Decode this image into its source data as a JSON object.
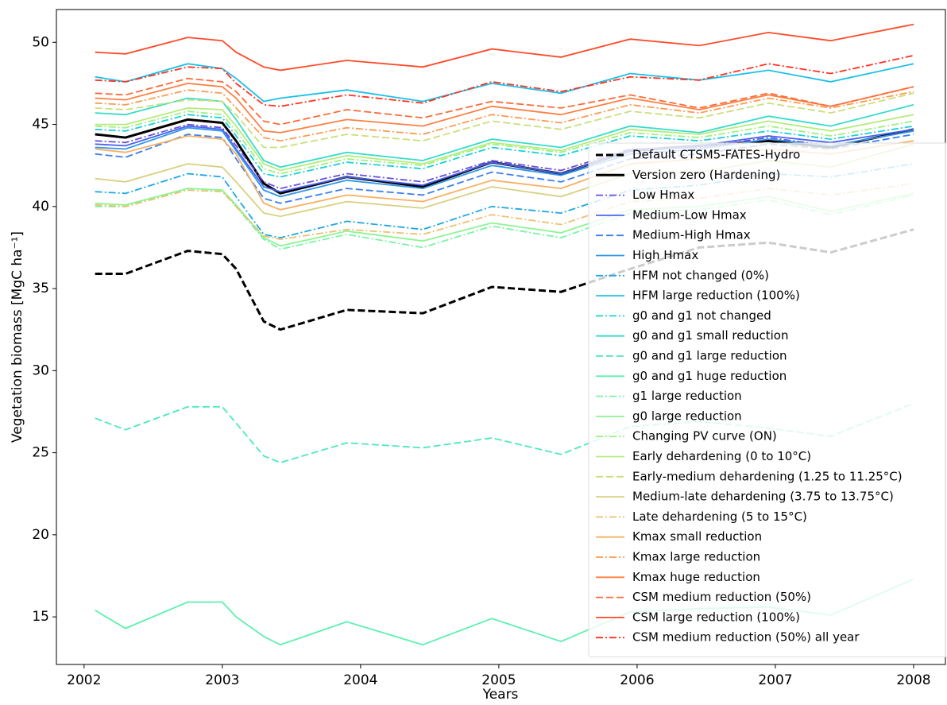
{
  "chart_data": {
    "type": "line",
    "xlabel": "Years",
    "ylabel": "Vegetation biomass [MgC ha⁻¹]",
    "xlim": [
      2001.8,
      2008.23
    ],
    "ylim": [
      12.1,
      52
    ],
    "xticks": [
      2002,
      2003,
      2004,
      2005,
      2006,
      2007,
      2008
    ],
    "yticks": [
      15,
      20,
      25,
      30,
      35,
      40,
      45,
      50
    ],
    "legend": "right",
    "x": [
      2002.08,
      2002.3,
      2002.75,
      2003.0,
      2003.1,
      2003.3,
      2003.42,
      2003.9,
      2004.45,
      2004.95,
      2005.45,
      2005.95,
      2006.45,
      2006.95,
      2007.4,
      2008.0
    ],
    "series": [
      {
        "name": "Default CTSM5-FATES-Hydro",
        "color": "#000000",
        "style": "dashed",
        "values": [
          35.9,
          35.9,
          37.3,
          37.1,
          36.2,
          33.0,
          32.5,
          33.7,
          33.5,
          35.1,
          34.8,
          36.2,
          37.5,
          37.8,
          37.2,
          38.6
        ]
      },
      {
        "name": "Version zero (Hardening)",
        "color": "#000000",
        "style": "solid",
        "values": [
          44.4,
          44.2,
          45.3,
          45.1,
          44.0,
          41.4,
          40.8,
          41.8,
          41.2,
          42.7,
          42.0,
          43.4,
          43.7,
          44.0,
          43.6,
          44.7
        ]
      },
      {
        "name": "Low Hmax",
        "color": "#6a4fe0",
        "style": "dashdot",
        "values": [
          44.0,
          43.9,
          45.0,
          44.8,
          43.7,
          41.5,
          41.1,
          42.0,
          41.5,
          42.8,
          42.2,
          43.5,
          43.6,
          44.2,
          43.7,
          44.6
        ]
      },
      {
        "name": "Medium-Low Hmax",
        "color": "#4a62ec",
        "style": "solid",
        "values": [
          43.8,
          43.7,
          44.9,
          44.7,
          43.5,
          41.2,
          40.9,
          41.8,
          41.3,
          42.7,
          42.0,
          43.4,
          43.7,
          44.3,
          43.9,
          44.7
        ]
      },
      {
        "name": "Medium-High Hmax",
        "color": "#3a7ef0",
        "style": "dashed",
        "values": [
          43.2,
          43.0,
          44.4,
          44.2,
          42.9,
          40.5,
          40.2,
          41.1,
          40.7,
          42.1,
          41.5,
          42.9,
          43.2,
          43.8,
          43.5,
          44.4
        ]
      },
      {
        "name": "High Hmax",
        "color": "#2f96e8",
        "style": "solid",
        "values": [
          43.6,
          43.5,
          44.8,
          44.6,
          43.4,
          41.0,
          40.6,
          41.6,
          41.1,
          42.5,
          41.9,
          43.2,
          43.5,
          44.1,
          43.7,
          44.6
        ]
      },
      {
        "name": "HFM not changed (0%)",
        "color": "#1ea8e0",
        "style": "dashdot",
        "values": [
          40.9,
          40.8,
          42.0,
          41.8,
          40.6,
          38.3,
          38.1,
          39.1,
          38.6,
          40.0,
          39.6,
          41.0,
          41.3,
          42.0,
          41.8,
          42.6
        ]
      },
      {
        "name": "HFM large reduction (100%)",
        "color": "#1cc0e6",
        "style": "solid",
        "values": [
          47.9,
          47.6,
          48.7,
          48.4,
          47.8,
          46.4,
          46.6,
          47.1,
          46.4,
          47.5,
          46.9,
          48.1,
          47.7,
          48.3,
          47.6,
          48.7
        ]
      },
      {
        "name": "g0 and g1 not changed",
        "color": "#1ad0d8",
        "style": "dashdot",
        "values": [
          44.7,
          44.6,
          45.6,
          45.4,
          44.3,
          42.0,
          41.8,
          42.7,
          42.3,
          43.6,
          43.1,
          44.3,
          44.0,
          44.6,
          44.1,
          44.9
        ]
      },
      {
        "name": "g0 and g1 small reduction",
        "color": "#35dccb",
        "style": "solid",
        "values": [
          45.7,
          45.6,
          46.6,
          46.4,
          45.3,
          42.8,
          42.4,
          43.3,
          42.8,
          44.1,
          43.6,
          44.9,
          44.5,
          45.5,
          44.9,
          46.2
        ]
      },
      {
        "name": "g0 and g1 large reduction",
        "color": "#4ee8c0",
        "style": "dashed",
        "values": [
          27.1,
          26.4,
          27.8,
          27.8,
          26.8,
          24.8,
          24.4,
          25.6,
          25.3,
          25.9,
          24.9,
          26.6,
          26.9,
          26.5,
          26.0,
          28.0
        ]
      },
      {
        "name": "g0 and g1 huge reduction",
        "color": "#5cf0b0",
        "style": "solid",
        "values": [
          15.4,
          14.3,
          15.9,
          15.9,
          15.0,
          13.8,
          13.3,
          14.7,
          13.3,
          14.9,
          13.5,
          15.3,
          15.5,
          15.6,
          15.1,
          17.3
        ]
      },
      {
        "name": "g1 large reduction",
        "color": "#7af4a6",
        "style": "dashdot",
        "values": [
          40.0,
          40.0,
          41.1,
          41.0,
          40.0,
          38.0,
          37.4,
          38.3,
          37.5,
          38.8,
          38.1,
          39.6,
          39.8,
          40.4,
          39.5,
          40.7
        ]
      },
      {
        "name": "g0 large reduction",
        "color": "#8cf590",
        "style": "solid",
        "values": [
          40.2,
          40.1,
          41.1,
          41.0,
          40.1,
          38.1,
          37.6,
          38.5,
          37.9,
          39.0,
          38.4,
          39.8,
          40.0,
          40.6,
          39.7,
          40.8
        ]
      },
      {
        "name": "Changing PV curve (ON)",
        "color": "#a0f080",
        "style": "dashdot",
        "values": [
          44.9,
          44.8,
          45.8,
          45.6,
          44.6,
          42.3,
          42.0,
          42.9,
          42.5,
          43.8,
          43.3,
          44.5,
          44.2,
          44.9,
          44.3,
          45.2
        ]
      },
      {
        "name": "Early dehardening (0 to 10°C)",
        "color": "#b4ec7c",
        "style": "solid",
        "values": [
          45.0,
          45.0,
          46.0,
          45.9,
          44.9,
          42.6,
          42.2,
          43.1,
          42.6,
          43.9,
          43.4,
          44.7,
          44.4,
          45.2,
          44.6,
          45.6
        ]
      },
      {
        "name": "Early-medium dehardening (1.25 to 11.25°C)",
        "color": "#c8e07a",
        "style": "dashed",
        "values": [
          46.0,
          45.9,
          46.5,
          46.4,
          45.6,
          43.6,
          43.6,
          44.4,
          44.0,
          45.2,
          44.7,
          45.8,
          45.4,
          46.3,
          45.7,
          46.9
        ]
      },
      {
        "name": "Medium-late dehardening (3.75 to 13.75°C)",
        "color": "#d8d080",
        "style": "solid",
        "values": [
          41.7,
          41.5,
          42.6,
          42.4,
          41.5,
          39.6,
          39.4,
          40.3,
          39.9,
          41.2,
          40.6,
          42.0,
          42.1,
          42.8,
          42.4,
          43.8
        ]
      },
      {
        "name": "Late dehardening (5 to 15°C)",
        "color": "#ecc070",
        "style": "dashdot",
        "values": [
          40.1,
          40.0,
          41.0,
          40.9,
          40.0,
          38.2,
          38.0,
          38.6,
          38.3,
          39.5,
          38.9,
          40.3,
          40.5,
          41.1,
          40.7,
          41.4
        ]
      },
      {
        "name": "Kmax small reduction",
        "color": "#f8b060",
        "style": "solid",
        "values": [
          43.5,
          43.3,
          44.3,
          44.1,
          43.2,
          40.2,
          39.8,
          40.7,
          40.3,
          41.6,
          41.1,
          42.6,
          42.9,
          43.5,
          43.2,
          44.0
        ]
      },
      {
        "name": "Kmax large reduction",
        "color": "#fc9a50",
        "style": "dashdot",
        "values": [
          46.3,
          46.2,
          47.1,
          46.9,
          46.0,
          44.2,
          44.0,
          44.8,
          44.4,
          45.6,
          45.1,
          46.2,
          45.7,
          46.6,
          46.0,
          47.0
        ]
      },
      {
        "name": "Kmax huge reduction",
        "color": "#fd8044",
        "style": "solid",
        "values": [
          46.6,
          46.5,
          47.5,
          47.3,
          46.6,
          44.6,
          44.5,
          45.3,
          44.9,
          46.1,
          45.6,
          46.6,
          45.9,
          46.8,
          46.1,
          47.3
        ]
      },
      {
        "name": "CSM medium reduction (50%)",
        "color": "#fe6a38",
        "style": "dashed",
        "values": [
          46.9,
          46.8,
          47.8,
          47.6,
          47.0,
          45.2,
          45.0,
          45.9,
          45.4,
          46.4,
          46.0,
          46.8,
          46.0,
          46.9,
          46.1,
          47.3
        ]
      },
      {
        "name": "CSM large reduction (100%)",
        "color": "#ff4a28",
        "style": "solid",
        "values": [
          49.4,
          49.3,
          50.3,
          50.1,
          49.4,
          48.5,
          48.3,
          48.9,
          48.5,
          49.6,
          49.1,
          50.2,
          49.8,
          50.6,
          50.1,
          51.1
        ]
      },
      {
        "name": "CSM medium reduction (50%) all year",
        "color": "#ff3020",
        "style": "dashdot",
        "values": [
          47.7,
          47.6,
          48.5,
          48.4,
          47.5,
          46.2,
          46.1,
          46.8,
          46.3,
          47.6,
          47.0,
          47.9,
          47.7,
          48.7,
          48.1,
          49.2
        ]
      }
    ]
  }
}
